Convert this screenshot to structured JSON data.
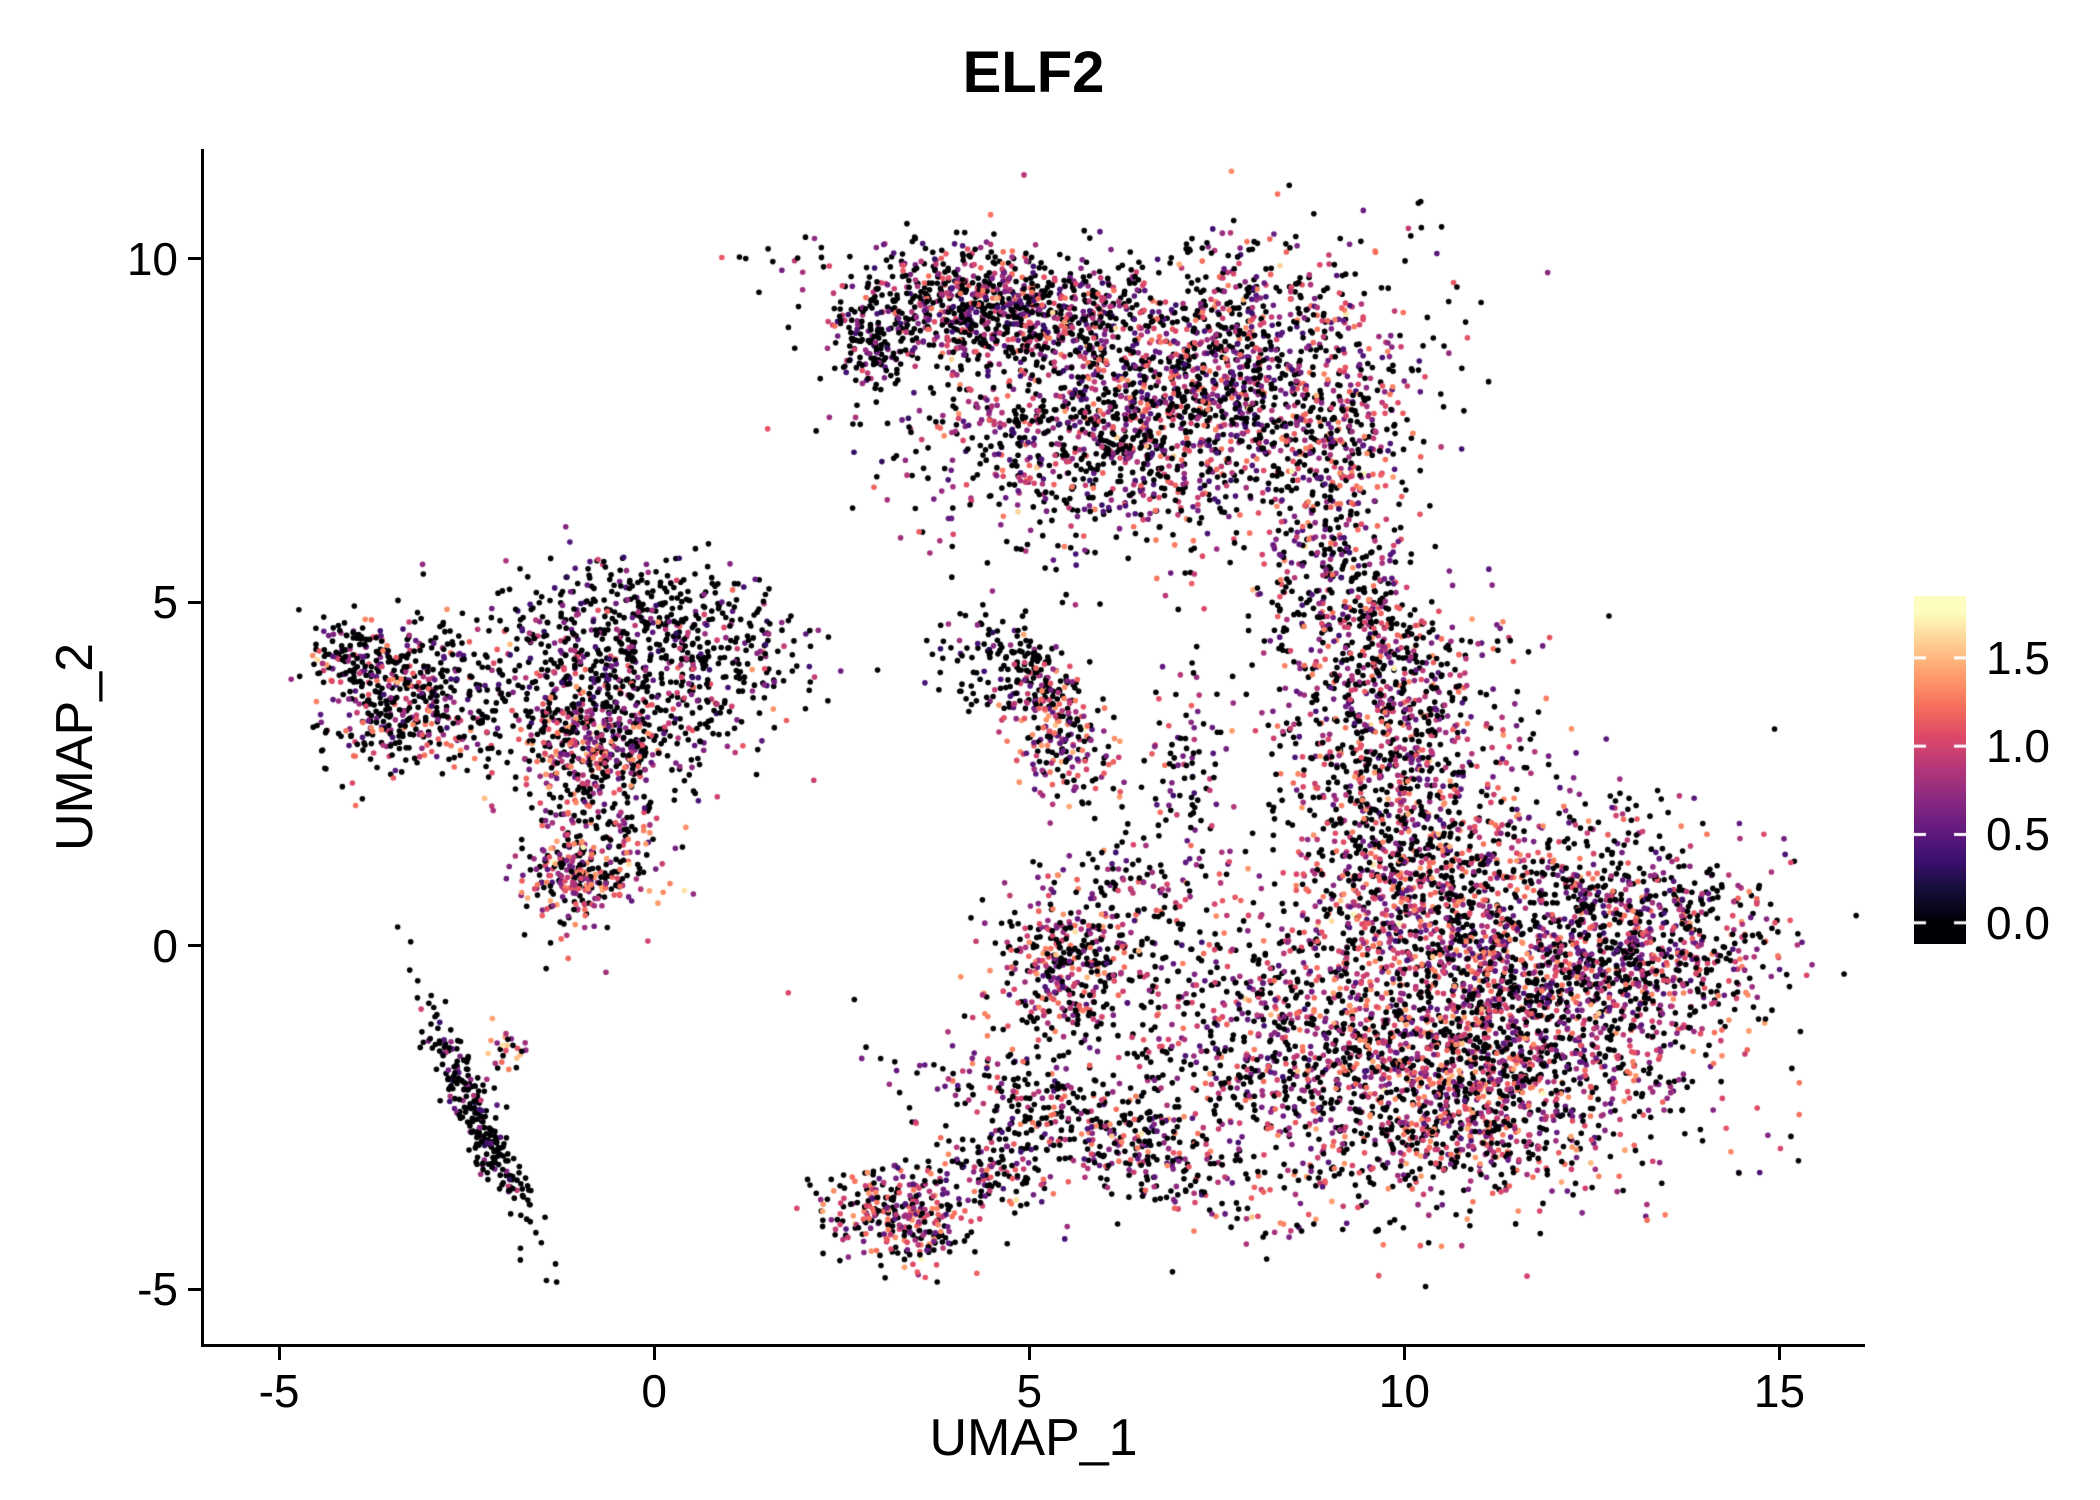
{
  "chart_data": {
    "type": "scatter",
    "title": "ELF2",
    "xlabel": "UMAP_1",
    "ylabel": "UMAP_2",
    "xlim": [
      -6.0,
      16.1
    ],
    "ylim": [
      -5.8,
      11.6
    ],
    "xtick_values": [
      -5,
      0,
      5,
      10,
      15
    ],
    "xtick_labels": [
      "-5",
      "0",
      "5",
      "10",
      "15"
    ],
    "ytick_values": [
      -5,
      0,
      5,
      10
    ],
    "ytick_labels": [
      "-5",
      "0",
      "5",
      "10"
    ],
    "grid": false,
    "background": "#ffffff",
    "axis_color": "#000000",
    "point_radius": 2.8,
    "seed": 20240613,
    "colormap": {
      "name": "magma",
      "stops": [
        [
          0.0,
          "#000004"
        ],
        [
          0.1,
          "#140e36"
        ],
        [
          0.2,
          "#3b0f70"
        ],
        [
          0.3,
          "#641a80"
        ],
        [
          0.4,
          "#8c2981"
        ],
        [
          0.5,
          "#b73779"
        ],
        [
          0.6,
          "#de4968"
        ],
        [
          0.7,
          "#f7705c"
        ],
        [
          0.8,
          "#fe9f6d"
        ],
        [
          0.9,
          "#fece91"
        ],
        [
          1.0,
          "#fcfdbf"
        ]
      ]
    },
    "colorbar": {
      "position": "right",
      "vmin": 0,
      "vmax": 1.76,
      "bar_lo": -0.12,
      "bar_hi": 1.85,
      "tick_values": [
        0,
        0.5,
        1,
        1.5
      ],
      "tick_labels": [
        "0.0",
        "0.5",
        "1.0",
        "1.5"
      ]
    },
    "clusters": [
      {
        "name": "crescent-left",
        "cx": 4.6,
        "cy": 9.3,
        "sx": 1.05,
        "sy": 0.42,
        "rot": -0.12,
        "n": 900,
        "p0": 0.5,
        "vmean": 0.8,
        "vspread": 0.5
      },
      {
        "name": "crescent-right",
        "cx": 7.5,
        "cy": 8.4,
        "sx": 1.25,
        "sy": 0.85,
        "rot": 0.3,
        "n": 1200,
        "p0": 0.45,
        "vmean": 0.85,
        "vspread": 0.5
      },
      {
        "name": "crescent-lower",
        "cx": 6.2,
        "cy": 7.2,
        "sx": 1.3,
        "sy": 0.65,
        "rot": 0.1,
        "n": 550,
        "p0": 0.5,
        "vmean": 0.8,
        "vspread": 0.5
      },
      {
        "name": "crescent-tip",
        "cx": 2.95,
        "cy": 8.8,
        "sx": 0.3,
        "sy": 0.35,
        "rot": 0,
        "n": 130,
        "p0": 0.8,
        "vmean": 0.6,
        "vspread": 0.35
      },
      {
        "name": "crescent-fringe",
        "cx": 4.7,
        "cy": 7.9,
        "sx": 1.0,
        "sy": 0.55,
        "rot": 0,
        "n": 180,
        "p0": 0.65,
        "vmean": 0.7,
        "vspread": 0.4
      },
      {
        "name": "crescent-right-limb",
        "cx": 9.1,
        "cy": 7.0,
        "sx": 0.5,
        "sy": 0.9,
        "rot": -0.5,
        "n": 300,
        "p0": 0.45,
        "vmean": 0.9,
        "vspread": 0.5
      },
      {
        "name": "bridge-upper",
        "cx": 8.8,
        "cy": 5.3,
        "sx": 0.4,
        "sy": 1.0,
        "rot": 0,
        "n": 140,
        "p0": 0.55,
        "vmean": 0.8,
        "vspread": 0.5
      },
      {
        "name": "bridge-lower",
        "cx": 9.5,
        "cy": 4.9,
        "sx": 0.4,
        "sy": 0.7,
        "rot": 0,
        "n": 160,
        "p0": 0.5,
        "vmean": 0.85,
        "vspread": 0.5
      },
      {
        "name": "right-upper",
        "cx": 9.8,
        "cy": 3.4,
        "sx": 0.75,
        "sy": 1.0,
        "rot": 0,
        "n": 650,
        "p0": 0.45,
        "vmean": 0.9,
        "vspread": 0.5
      },
      {
        "name": "right-mid-upper",
        "cx": 9.9,
        "cy": 1.4,
        "sx": 0.7,
        "sy": 0.9,
        "rot": 0,
        "n": 450,
        "p0": 0.45,
        "vmean": 0.9,
        "vspread": 0.5
      },
      {
        "name": "right-main",
        "cx": 11.3,
        "cy": -0.4,
        "sx": 1.5,
        "sy": 1.25,
        "rot": 0,
        "n": 2300,
        "p0": 0.45,
        "vmean": 0.9,
        "vspread": 0.5
      },
      {
        "name": "right-lower",
        "cx": 10.7,
        "cy": -2.3,
        "sx": 1.3,
        "sy": 0.75,
        "rot": 0.1,
        "n": 900,
        "p0": 0.42,
        "vmean": 0.95,
        "vspread": 0.5
      },
      {
        "name": "right-east",
        "cx": 13.4,
        "cy": 0.1,
        "sx": 0.8,
        "sy": 0.6,
        "rot": -0.3,
        "n": 380,
        "p0": 0.5,
        "vmean": 0.85,
        "vspread": 0.5
      },
      {
        "name": "right-west-arm",
        "cx": 8.0,
        "cy": -1.3,
        "sx": 1.0,
        "sy": 0.85,
        "rot": 0,
        "n": 520,
        "p0": 0.5,
        "vmean": 0.85,
        "vspread": 0.5
      },
      {
        "name": "southwest-arm",
        "cx": 5.9,
        "cy": -2.7,
        "sx": 1.3,
        "sy": 0.42,
        "rot": -0.42,
        "n": 480,
        "p0": 0.5,
        "vmean": 0.85,
        "vspread": 0.5
      },
      {
        "name": "arm-knot",
        "cx": 5.5,
        "cy": -0.2,
        "sx": 0.5,
        "sy": 0.6,
        "rot": 0,
        "n": 380,
        "p0": 0.45,
        "vmean": 0.9,
        "vspread": 0.5
      },
      {
        "name": "arm-trail",
        "cx": 6.6,
        "cy": 0.9,
        "sx": 0.45,
        "sy": 0.8,
        "rot": 0,
        "n": 130,
        "p0": 0.55,
        "vmean": 0.8,
        "vspread": 0.45
      },
      {
        "name": "mid-trail",
        "cx": 7.0,
        "cy": 2.7,
        "sx": 0.3,
        "sy": 0.65,
        "rot": 0,
        "n": 70,
        "p0": 0.6,
        "vmean": 0.75,
        "vspread": 0.45
      },
      {
        "name": "center-black-arc",
        "cx": 4.6,
        "cy": 4.2,
        "sx": 0.5,
        "sy": 0.38,
        "rot": -0.4,
        "n": 110,
        "p0": 0.85,
        "vmean": 0.5,
        "vspread": 0.3
      },
      {
        "name": "center-small",
        "cx": 5.0,
        "cy": 3.9,
        "sx": 0.25,
        "sy": 0.25,
        "rot": 0,
        "n": 60,
        "p0": 0.7,
        "vmean": 0.7,
        "vspread": 0.4
      },
      {
        "name": "center-colored",
        "cx": 5.4,
        "cy": 3.1,
        "sx": 0.32,
        "sy": 0.55,
        "rot": 0.2,
        "n": 220,
        "p0": 0.35,
        "vmean": 0.95,
        "vspread": 0.5
      },
      {
        "name": "left-west",
        "cx": -3.3,
        "cy": 3.6,
        "sx": 0.62,
        "sy": 0.55,
        "rot": 0,
        "n": 470,
        "p0": 0.6,
        "vmean": 0.85,
        "vspread": 0.5
      },
      {
        "name": "left-west-tip",
        "cx": -4.05,
        "cy": 4.25,
        "sx": 0.28,
        "sy": 0.28,
        "rot": 0,
        "n": 90,
        "p0": 0.55,
        "vmean": 0.9,
        "vspread": 0.5
      },
      {
        "name": "left-main",
        "cx": -0.6,
        "cy": 3.7,
        "sx": 0.95,
        "sy": 0.7,
        "rot": 0,
        "n": 620,
        "p0": 0.7,
        "vmean": 0.75,
        "vspread": 0.45
      },
      {
        "name": "left-colored-knot",
        "cx": -0.85,
        "cy": 2.95,
        "sx": 0.45,
        "sy": 0.35,
        "rot": 0,
        "n": 190,
        "p0": 0.35,
        "vmean": 0.95,
        "vspread": 0.5
      },
      {
        "name": "left-top",
        "cx": -0.3,
        "cy": 4.9,
        "sx": 0.8,
        "sy": 0.5,
        "rot": 0,
        "n": 200,
        "p0": 0.75,
        "vmean": 0.65,
        "vspread": 0.4
      },
      {
        "name": "left-east",
        "cx": 1.1,
        "cy": 4.35,
        "sx": 0.55,
        "sy": 0.4,
        "rot": 0,
        "n": 140,
        "p0": 0.7,
        "vmean": 0.7,
        "vspread": 0.4
      },
      {
        "name": "left-tail",
        "cx": -0.75,
        "cy": 1.7,
        "sx": 0.5,
        "sy": 0.75,
        "rot": 0,
        "n": 300,
        "p0": 0.45,
        "vmean": 0.9,
        "vspread": 0.5
      },
      {
        "name": "left-tail-knot",
        "cx": -1.05,
        "cy": 0.95,
        "sx": 0.33,
        "sy": 0.28,
        "rot": 0,
        "n": 150,
        "p0": 0.35,
        "vmean": 1.0,
        "vspread": 0.5
      },
      {
        "name": "streak",
        "cx": -2.35,
        "cy": -2.5,
        "sx": 0.14,
        "sy": 0.92,
        "rot": 0.39,
        "n": 270,
        "p0": 0.78,
        "vmean": 0.6,
        "vspread": 0.4
      },
      {
        "name": "streak-top",
        "cx": -1.95,
        "cy": -1.5,
        "sx": 0.12,
        "sy": 0.2,
        "rot": 0,
        "n": 25,
        "p0": 0.3,
        "vmean": 1.1,
        "vspread": 0.5
      },
      {
        "name": "south-knot",
        "cx": 3.25,
        "cy": -3.95,
        "sx": 0.5,
        "sy": 0.33,
        "rot": -0.15,
        "n": 300,
        "p0": 0.45,
        "vmean": 0.9,
        "vspread": 0.5
      },
      {
        "name": "south-arm",
        "cx": 4.4,
        "cy": -3.3,
        "sx": 0.5,
        "sy": 0.25,
        "rot": -0.3,
        "n": 120,
        "p0": 0.55,
        "vmean": 0.85,
        "vspread": 0.5
      },
      {
        "name": "sparse-mid",
        "cx": 6.3,
        "cy": 5.6,
        "sx": 1.6,
        "sy": 0.7,
        "rot": 0,
        "n": 45,
        "p0": 0.6,
        "vmean": 0.7,
        "vspread": 0.4
      }
    ]
  }
}
